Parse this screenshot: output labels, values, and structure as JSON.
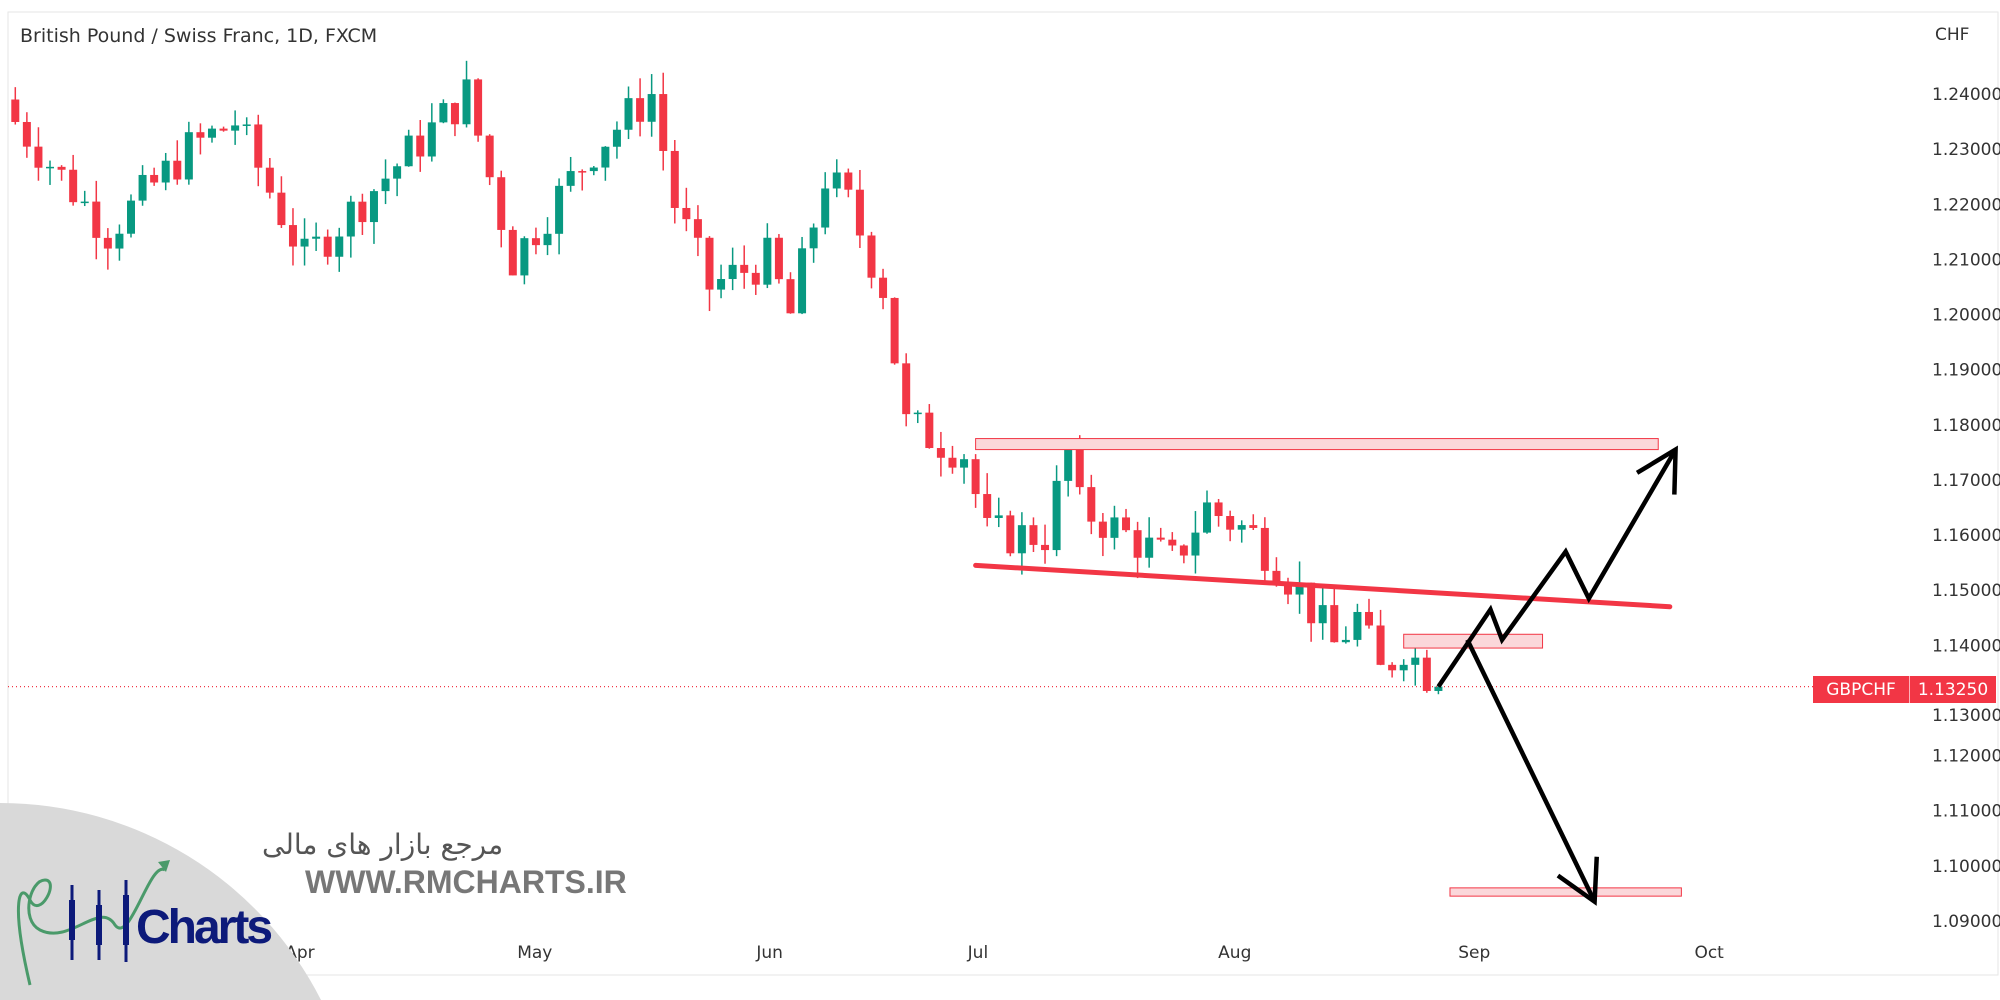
{
  "header": {
    "title": "British Pound / Swiss Franc, 1D, FXCM"
  },
  "current_price": {
    "symbol": "GBPCHF",
    "value": "1.13250"
  },
  "watermark": {
    "persian": "مرجع بازار های مالی",
    "site": "WWW.RMCHARTS.IR",
    "brand": "Charts"
  },
  "colors": {
    "up": "#089981",
    "down": "#f23645",
    "zone_fill": "#fbd7da",
    "zone_border": "#f23645",
    "arrow": "#000000"
  },
  "chart_data": {
    "type": "candlestick",
    "title": "British Pound / Swiss Franc, 1D, FXCM",
    "y_axis_label": "CHF",
    "ylim": [
      1.0885,
      1.2505
    ],
    "y_ticks": [
      "1.24000",
      "1.23000",
      "1.22000",
      "1.21000",
      "1.20000",
      "1.19000",
      "1.18000",
      "1.17000",
      "1.16000",
      "1.15000",
      "1.14000",
      "1.13000",
      "1.12000",
      "1.11000",
      "1.10000",
      "1.09000"
    ],
    "x_ticks": [
      {
        "label": "Apr",
        "day": 24.6
      },
      {
        "label": "May",
        "day": 44.9
      },
      {
        "label": "Jun",
        "day": 65.2
      },
      {
        "label": "Jul",
        "day": 83.2
      },
      {
        "label": "Aug",
        "day": 105.4
      },
      {
        "label": "Sep",
        "day": 126.1
      },
      {
        "label": "Oct",
        "day": 146.4
      }
    ],
    "close_waypoints": [
      [
        0,
        1.235
      ],
      [
        8,
        1.215
      ],
      [
        15,
        1.23
      ],
      [
        19,
        1.235
      ],
      [
        25,
        1.21
      ],
      [
        39,
        1.24
      ],
      [
        43,
        1.21
      ],
      [
        50,
        1.23
      ],
      [
        55,
        1.24
      ],
      [
        57,
        1.22
      ],
      [
        60,
        1.205
      ],
      [
        65,
        1.21
      ],
      [
        67,
        1.2
      ],
      [
        70,
        1.225
      ],
      [
        72,
        1.22
      ],
      [
        75,
        1.205
      ],
      [
        77,
        1.18
      ],
      [
        82,
        1.175
      ],
      [
        84,
        1.16
      ],
      [
        89,
        1.16
      ],
      [
        91,
        1.175
      ],
      [
        92,
        1.165
      ],
      [
        96,
        1.16
      ],
      [
        100,
        1.155
      ],
      [
        103,
        1.165
      ],
      [
        107,
        1.16
      ],
      [
        111,
        1.15
      ],
      [
        114,
        1.14
      ],
      [
        116,
        1.145
      ],
      [
        118,
        1.135
      ],
      [
        120,
        1.14
      ],
      [
        123,
        1.1325
      ]
    ],
    "last_price": 1.1325,
    "annotations": {
      "zones": [
        {
          "day_from": 83,
          "day_to": 142,
          "low": 1.1755,
          "high": 1.1775
        },
        {
          "day_from": 120,
          "day_to": 132,
          "low": 1.1395,
          "high": 1.142
        },
        {
          "day_from": 124,
          "day_to": 144,
          "low": 1.0945,
          "high": 1.096
        }
      ],
      "trendline": {
        "from": [
          83,
          1.1545
        ],
        "to": [
          143,
          1.147
        ]
      },
      "bullish_path": [
        [
          123,
          1.1325
        ],
        [
          127.5,
          1.1465
        ],
        [
          128.5,
          1.141
        ],
        [
          134,
          1.157
        ],
        [
          136,
          1.1485
        ],
        [
          143.5,
          1.1755
        ]
      ],
      "bearish_path": [
        [
          125.5,
          1.141
        ],
        [
          136.5,
          1.0935
        ]
      ]
    }
  }
}
